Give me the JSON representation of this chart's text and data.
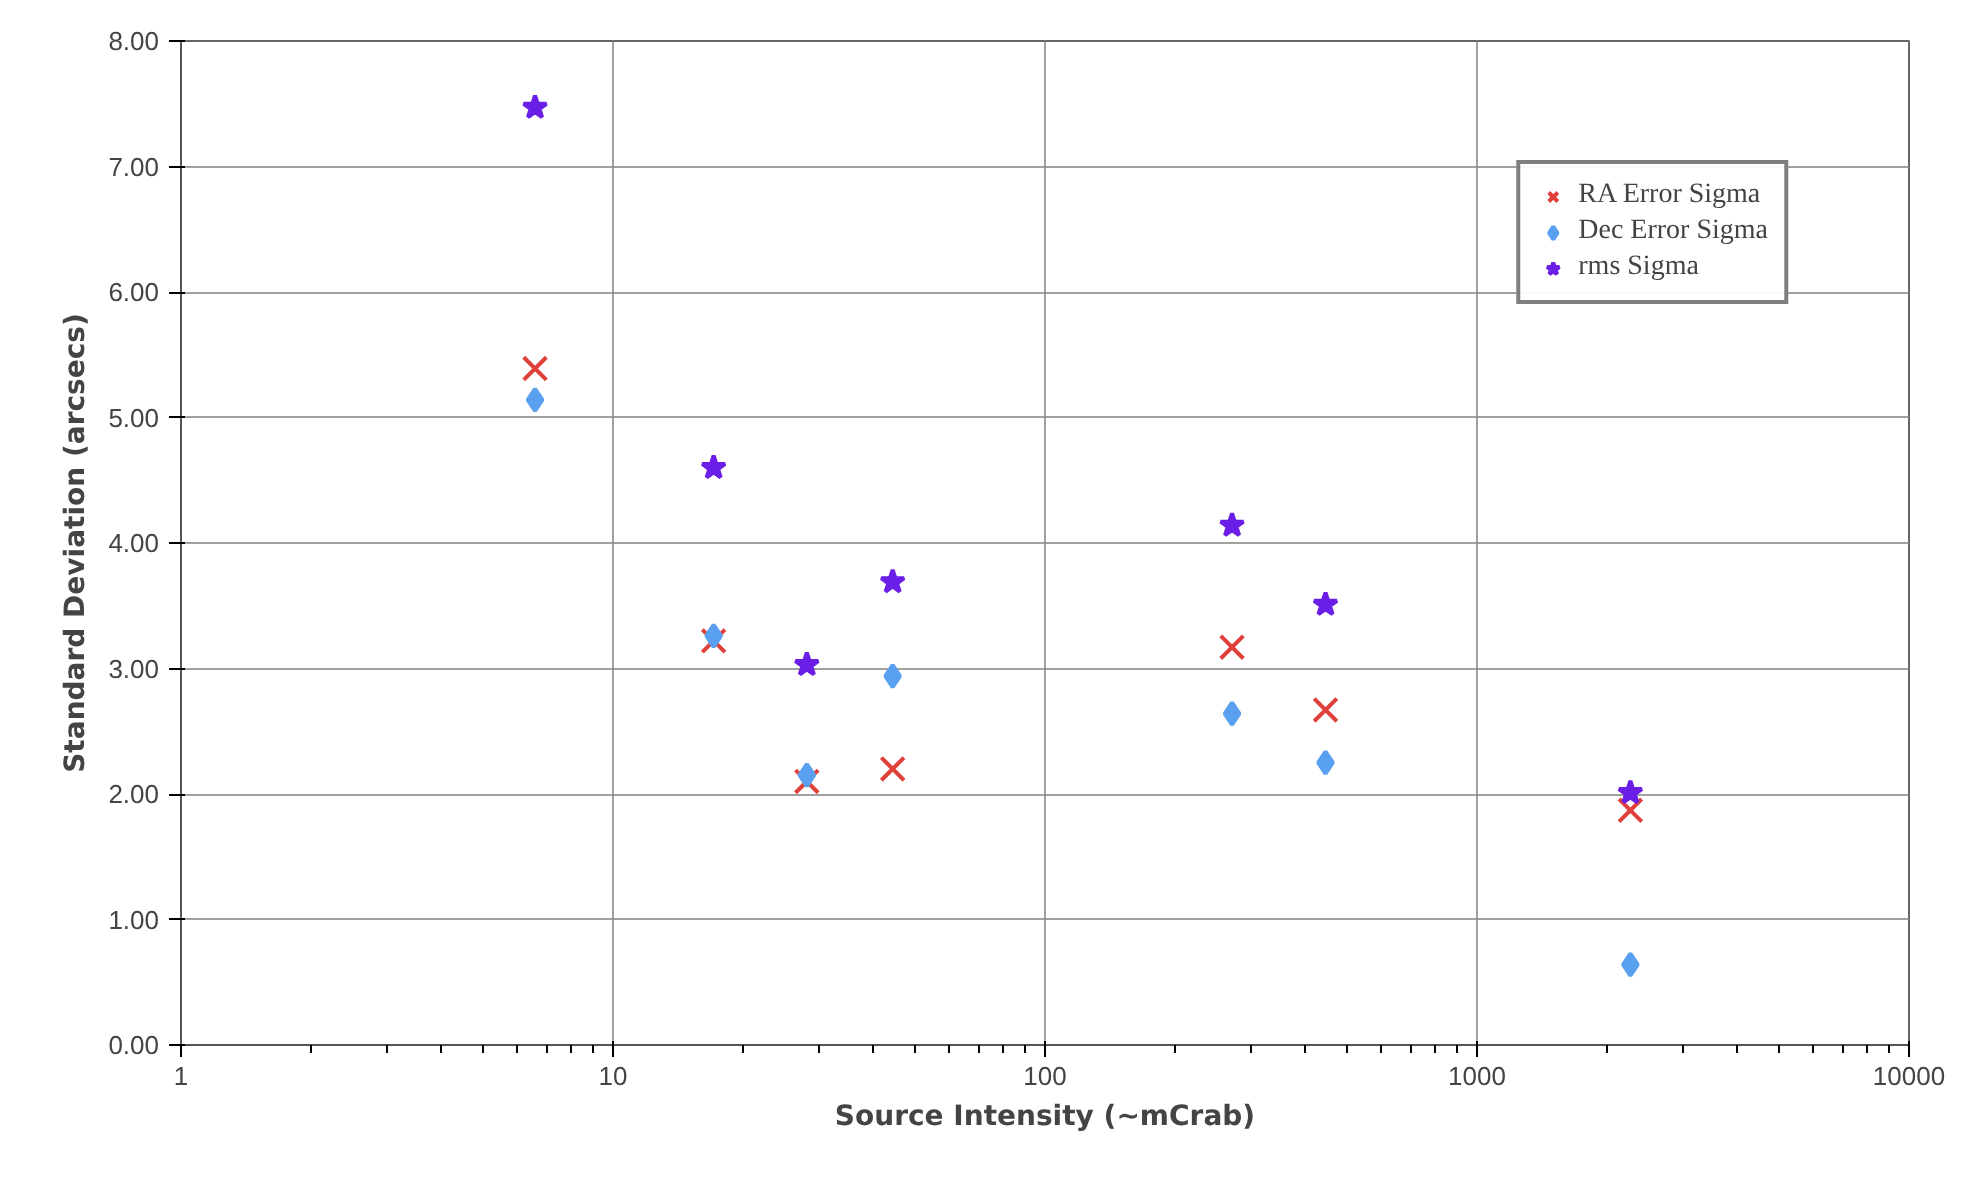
{
  "chart_data": {
    "type": "scatter",
    "xlabel": "Source Intensity (~mCrab)",
    "ylabel": "Standard Deviation (arcsecs)",
    "x": [
      6.6,
      17.1,
      28.1,
      44.4,
      271,
      446,
      2265
    ],
    "series": [
      {
        "name": "RA Error Sigma",
        "color": "#e0403a",
        "marker": "cross",
        "values": [
          5.39,
          3.22,
          2.1,
          2.2,
          3.17,
          2.67,
          1.87
        ]
      },
      {
        "name": "Dec Error Sigma",
        "color": "#5aa0f0",
        "marker": "diamond",
        "values": [
          5.14,
          3.26,
          2.15,
          2.94,
          2.64,
          2.25,
          0.64
        ]
      },
      {
        "name": "rms Sigma",
        "color": "#6a1ee6",
        "marker": "star",
        "values": [
          7.47,
          4.6,
          3.03,
          3.69,
          4.14,
          3.51,
          2.01
        ]
      }
    ],
    "log": "x",
    "xlim": [
      1,
      10000
    ],
    "xticks": [
      1,
      10,
      100,
      1000,
      10000
    ],
    "ylim": [
      0,
      8
    ],
    "yticks": [
      {
        "value": 0,
        "label": "0.00"
      },
      {
        "value": 1,
        "label": "1.00"
      },
      {
        "value": 2,
        "label": "2.00"
      },
      {
        "value": 3,
        "label": "3.00"
      },
      {
        "value": 4,
        "label": "4.00"
      },
      {
        "value": 5,
        "label": "5.00"
      },
      {
        "value": 6,
        "label": "6.00"
      },
      {
        "value": 7,
        "label": "7.00"
      },
      {
        "value": 8,
        "label": "8.00"
      }
    ],
    "grid": true,
    "legend": "top right"
  }
}
